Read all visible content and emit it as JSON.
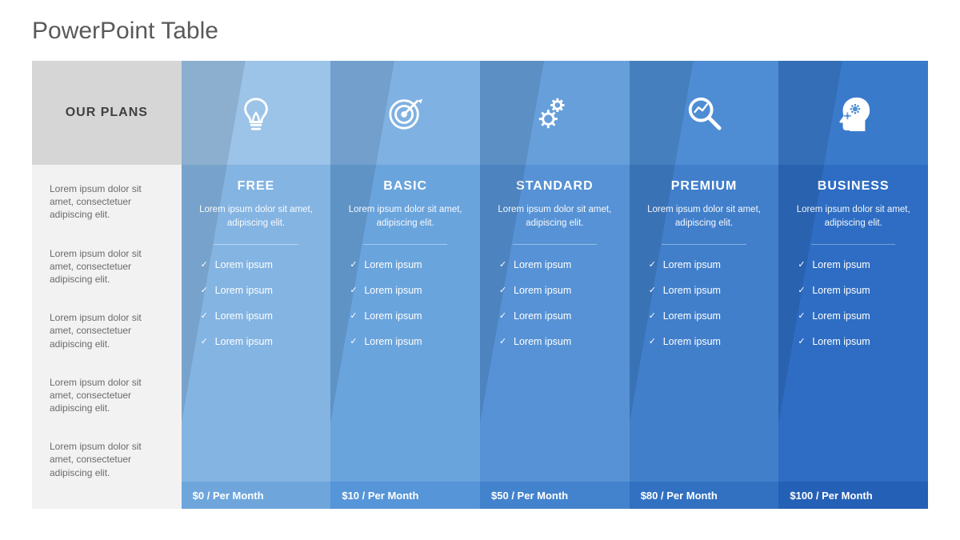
{
  "slide_title": "PowerPoint Table",
  "intro": {
    "header": "OUR PLANS",
    "rows": [
      "Lorem ipsum dolor sit amet, consectetuer adipiscing elit.",
      "Lorem ipsum dolor sit amet, consectetuer adipiscing elit.",
      "Lorem ipsum dolor sit amet, consectetuer adipiscing elit.",
      "Lorem ipsum dolor sit amet, consectetuer adipiscing elit.",
      "Lorem ipsum dolor sit amet, consectetuer adipiscing elit."
    ],
    "header_bg": "#d6d6d6",
    "body_bg": "#f2f2f2",
    "header_text_color": "#404040",
    "row_text_color": "#6b6b6b"
  },
  "plans": [
    {
      "id": "free",
      "name": "FREE",
      "icon": "lightbulb-icon",
      "desc": "Lorem ipsum dolor sit amet, adipiscing elit.",
      "features": [
        "Lorem ipsum",
        "Lorem ipsum",
        "Lorem ipsum",
        "Lorem ipsum"
      ],
      "price": "$0 / Per Month",
      "header_bg": "#9cc3e8",
      "body_bg": "#84b4e2",
      "footer_bg": "#6ea6dc",
      "sep_color": "#b9d4ef"
    },
    {
      "id": "basic",
      "name": "BASIC",
      "icon": "target-icon",
      "desc": "Lorem ipsum dolor sit amet, adipiscing elit.",
      "features": [
        "Lorem ipsum",
        "Lorem ipsum",
        "Lorem ipsum",
        "Lorem ipsum"
      ],
      "price": "$10 / Per Month",
      "header_bg": "#7fb1e2",
      "body_bg": "#6aa4dd",
      "footer_bg": "#5695d7",
      "sep_color": "#a6c9ec"
    },
    {
      "id": "standard",
      "name": "STANDARD",
      "icon": "gears-icon",
      "desc": "Lorem ipsum dolor sit amet, adipiscing elit.",
      "features": [
        "Lorem ipsum",
        "Lorem ipsum",
        "Lorem ipsum",
        "Lorem ipsum"
      ],
      "price": "$50 / Per Month",
      "header_bg": "#679fda",
      "body_bg": "#5692d5",
      "footer_bg": "#4383cd",
      "sep_color": "#94bfe8"
    },
    {
      "id": "premium",
      "name": "PREMIUM",
      "icon": "analytics-magnifier-icon",
      "desc": "Lorem ipsum dolor sit amet, adipiscing elit.",
      "features": [
        "Lorem ipsum",
        "Lorem ipsum",
        "Lorem ipsum",
        "Lorem ipsum"
      ],
      "price": "$80 / Per Month",
      "header_bg": "#4e8dd3",
      "body_bg": "#417fcb",
      "footer_bg": "#3271c1",
      "sep_color": "#84b3e3"
    },
    {
      "id": "business",
      "name": "BUSINESS",
      "icon": "head-gears-icon",
      "desc": "Lorem ipsum dolor sit amet, adipiscing elit.",
      "features": [
        "Lorem ipsum",
        "Lorem ipsum",
        "Lorem ipsum",
        "Lorem ipsum"
      ],
      "price": "$100 / Per Month",
      "header_bg": "#3a7acb",
      "body_bg": "#2e6dc3",
      "footer_bg": "#2460b6",
      "sep_color": "#6fa4da"
    }
  ],
  "typography": {
    "title_fontsize": 30,
    "plan_name_fontsize": 16,
    "body_fontsize": 12
  }
}
